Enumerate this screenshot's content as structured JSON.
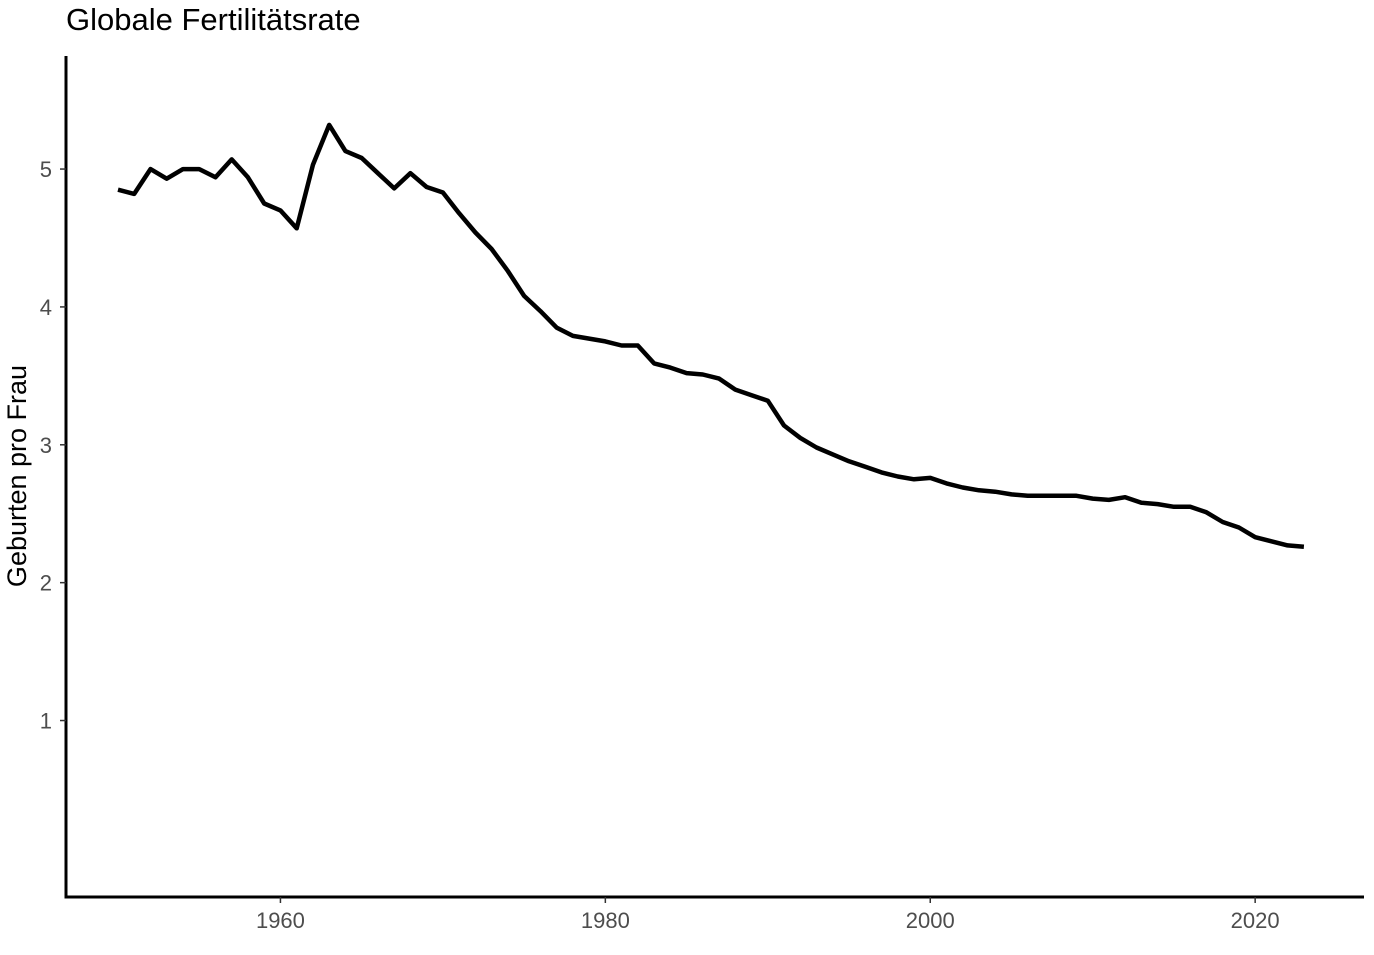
{
  "chart_data": {
    "type": "line",
    "title": "Globale Fertilitätsrate",
    "xlabel": "",
    "ylabel": "Geburten pro Frau",
    "xlim": [
      1946.8,
      2026.7
    ],
    "ylim": [
      -0.28,
      5.82
    ],
    "x_ticks": [
      1960,
      1980,
      2000,
      2020
    ],
    "x_tick_labels": [
      "1960",
      "1980",
      "2000",
      "2020"
    ],
    "y_ticks": [
      1,
      2,
      3,
      4,
      5
    ],
    "y_tick_labels": [
      "1",
      "2",
      "3",
      "4",
      "5"
    ],
    "grid": false,
    "legend": "none",
    "line_color": "#000000",
    "series": [
      {
        "x": [
          1950,
          1951,
          1952,
          1953,
          1954,
          1955,
          1956,
          1957,
          1958,
          1959,
          1960,
          1961,
          1962,
          1963,
          1964,
          1965,
          1966,
          1967,
          1968,
          1969,
          1970,
          1971,
          1972,
          1973,
          1974,
          1975,
          1976,
          1977,
          1978,
          1979,
          1980,
          1981,
          1982,
          1983,
          1984,
          1985,
          1986,
          1987,
          1988,
          1989,
          1990,
          1991,
          1992,
          1993,
          1994,
          1995,
          1996,
          1997,
          1998,
          1999,
          2000,
          2001,
          2002,
          2003,
          2004,
          2005,
          2006,
          2007,
          2008,
          2009,
          2010,
          2011,
          2012,
          2013,
          2014,
          2015,
          2016,
          2017,
          2018,
          2019,
          2020,
          2021,
          2022,
          2023
        ],
        "values": [
          4.85,
          4.82,
          5.0,
          4.93,
          5.0,
          5.0,
          4.94,
          5.07,
          4.94,
          4.75,
          4.7,
          4.57,
          5.03,
          5.32,
          5.13,
          5.08,
          4.97,
          4.86,
          4.97,
          4.87,
          4.83,
          4.68,
          4.54,
          4.42,
          4.26,
          4.08,
          3.97,
          3.85,
          3.79,
          3.77,
          3.75,
          3.72,
          3.72,
          3.59,
          3.56,
          3.52,
          3.51,
          3.48,
          3.4,
          3.36,
          3.32,
          3.14,
          3.05,
          2.98,
          2.93,
          2.88,
          2.84,
          2.8,
          2.77,
          2.75,
          2.76,
          2.72,
          2.69,
          2.67,
          2.66,
          2.64,
          2.63,
          2.63,
          2.63,
          2.63,
          2.61,
          2.6,
          2.62,
          2.58,
          2.57,
          2.55,
          2.55,
          2.51,
          2.44,
          2.4,
          2.33,
          2.3,
          2.27,
          2.26
        ]
      }
    ]
  }
}
